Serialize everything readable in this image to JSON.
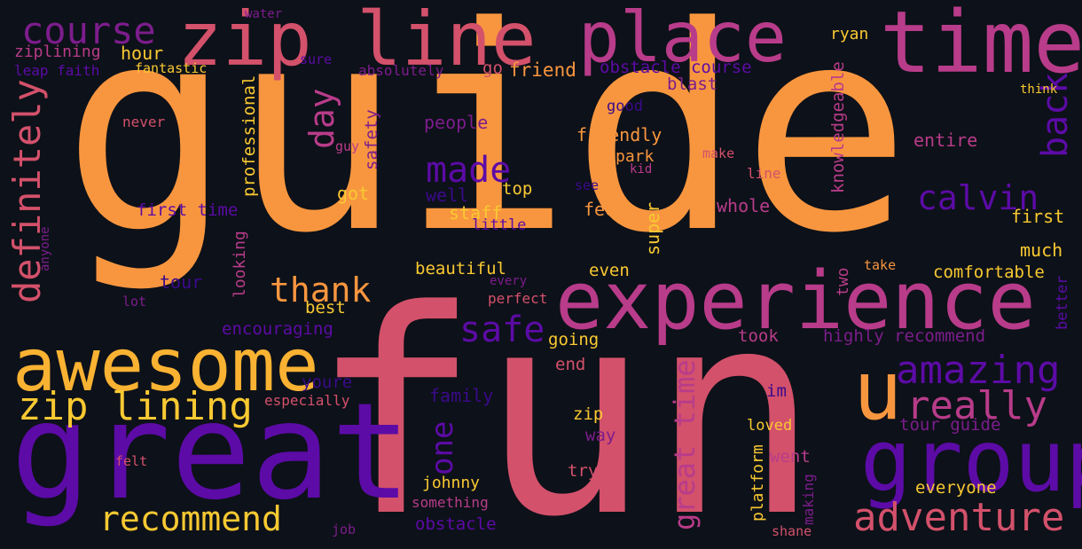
{
  "palette": {
    "background": "#0d1119",
    "orange": "#f8963f",
    "pink": "#d3516b",
    "magenta": "#b83c8a",
    "purple": "#5c0ba6",
    "deep_purple": "#3a0a8a",
    "yellow": "#f9c932",
    "dark_magenta": "#7c1d8c"
  },
  "words": {
    "guide": "guide",
    "fun": "fun",
    "great": "great",
    "experience": "experience",
    "awesome": "awesome",
    "zip_line": "zip line",
    "place": "place",
    "time": "time",
    "group": "group",
    "zip_lining": "zip lining",
    "adventure": "adventure",
    "amazing": "amazing",
    "recommend": "recommend",
    "really": "really",
    "u": "u",
    "course": "course",
    "made": "made",
    "safe": "safe",
    "calvin": "calvin",
    "thank": "thank",
    "definitely": "definitely",
    "great_time": "great time",
    "back": "back",
    "day": "day",
    "one": "one",
    "ziplining": "ziplining",
    "leap_faith": "leap faith",
    "hour": "hour",
    "fantastic": "fantastic",
    "water": "water",
    "sure": "sure",
    "absolutely": "absolutely",
    "go": "go",
    "friend": "friend",
    "obstacle_course": "obstacle course",
    "blast": "blast",
    "ryan": "ryan",
    "think": "think",
    "never": "never",
    "guy": "guy",
    "safety": "safety",
    "professional": "professional",
    "people": "people",
    "good": "good",
    "friendly": "friendly",
    "park": "park",
    "kid": "kid",
    "make": "make",
    "line": "line",
    "knowledgeable": "knowledgeable",
    "entire": "entire",
    "got": "got",
    "top": "top",
    "well": "well",
    "see": "see",
    "staff": "staff",
    "little": "little",
    "feel": "feel",
    "whole": "whole",
    "first_time": "first time",
    "first": "first",
    "anyone": "anyone",
    "looking": "looking",
    "super": "super",
    "much": "much",
    "take": "take",
    "comfortable": "comfortable",
    "beautiful": "beautiful",
    "even": "even",
    "every": "every",
    "perfect": "perfect",
    "two": "two",
    "tour": "tour",
    "lot": "lot",
    "best": "best",
    "better": "better",
    "encouraging": "encouraging",
    "going": "going",
    "took": "took",
    "highly_recommend": "highly recommend",
    "end": "end",
    "youre": "youre",
    "especially": "especially",
    "family": "family",
    "im": "im",
    "zip": "zip",
    "way": "way",
    "loved": "loved",
    "tour_guide": "tour guide",
    "went": "went",
    "felt": "felt",
    "platform": "platform",
    "try": "try",
    "making": "making",
    "everyone": "everyone",
    "johnny": "johnny",
    "something": "something",
    "job": "job",
    "obstacle": "obstacle",
    "shane": "shane"
  }
}
